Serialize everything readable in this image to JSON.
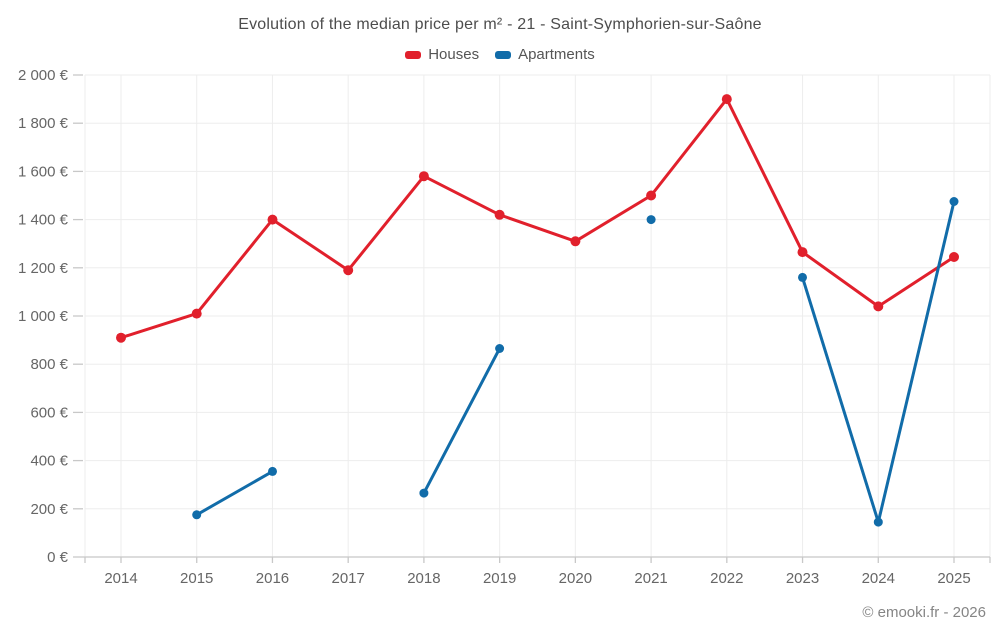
{
  "header": {
    "title": "Evolution of the median price per m² - 21 - Saint-Symphorien-sur-Saône",
    "legend": [
      {
        "label": "Houses",
        "color": "#e1202c"
      },
      {
        "label": "Apartments",
        "color": "#116ca9"
      }
    ]
  },
  "footer": {
    "credit": "© emooki.fr - 2026"
  },
  "chart_data": {
    "type": "line",
    "title": "Evolution of the median price per m² - 21 - Saint-Symphorien-sur-Saône",
    "x_labels": [
      "2014",
      "2015",
      "2016",
      "2017",
      "2018",
      "2019",
      "2020",
      "2021",
      "2022",
      "2023",
      "2024",
      "2025"
    ],
    "y_tick_labels": [
      "0 €",
      "200 €",
      "400 €",
      "600 €",
      "800 €",
      "1 000 €",
      "1 200 €",
      "1 400 €",
      "1 600 €",
      "1 800 €",
      "2 000 €"
    ],
    "ylim": [
      0,
      2000
    ],
    "ytick_step": 200,
    "unit": "€",
    "grid": true,
    "legend_position": "top",
    "series": [
      {
        "name": "Houses",
        "color": "#e1202c",
        "values": [
          910,
          1010,
          1400,
          1190,
          1580,
          1420,
          1310,
          1500,
          1900,
          1265,
          1040,
          1245
        ]
      },
      {
        "name": "Apartments",
        "color": "#116ca9",
        "values": [
          null,
          175,
          355,
          null,
          265,
          865,
          null,
          1400,
          null,
          1160,
          145,
          1475
        ]
      }
    ]
  }
}
